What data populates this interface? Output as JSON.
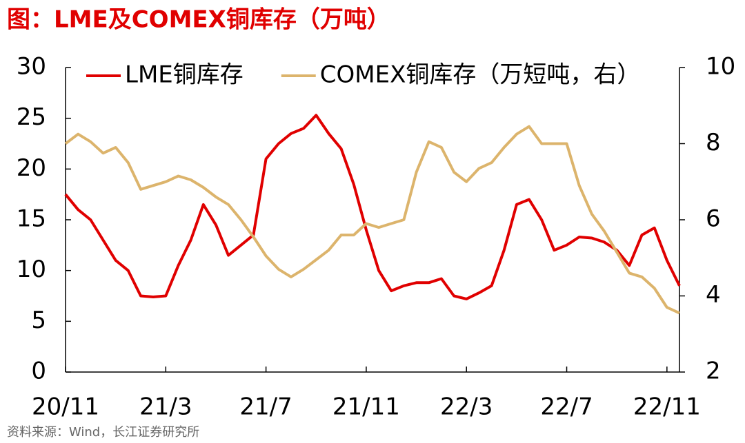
{
  "chart_data": {
    "type": "line",
    "title": "图：LME及COMEX铜库存（万吨）",
    "source": "资料来源：Wind，长江证券研究所",
    "categories": [
      "20/11",
      null,
      null,
      null,
      null,
      null,
      null,
      null,
      "21/3",
      null,
      null,
      null,
      null,
      null,
      null,
      null,
      "21/7",
      null,
      null,
      null,
      null,
      null,
      null,
      null,
      "21/11",
      null,
      null,
      null,
      null,
      null,
      null,
      null,
      "22/3",
      null,
      null,
      null,
      null,
      null,
      null,
      null,
      "22/7",
      null,
      null,
      null,
      null,
      null,
      null,
      null,
      "22/11",
      null
    ],
    "series": [
      {
        "name": "LME铜库存",
        "color": "#e00000",
        "values": [
          17.5,
          16,
          15,
          13,
          11,
          10,
          7.5,
          7.4,
          7.5,
          10.5,
          13,
          16.5,
          14.5,
          11.5,
          12.5,
          13.5,
          21,
          22.5,
          23.5,
          24,
          25.3,
          23.5,
          22,
          18.5,
          14,
          10,
          8,
          8.5,
          8.8,
          8.8,
          9.2,
          7.5,
          7.2,
          7.8,
          8.5,
          12,
          16.5,
          17,
          15,
          12,
          12.5,
          13.3,
          13.2,
          12.8,
          12,
          10.5,
          13.5,
          14.2,
          11,
          8.5
        ]
      },
      {
        "name": "COMEX铜库存（万短吨，右）",
        "color": "#dcb46c",
        "axis": "y2",
        "values": [
          8.0,
          8.25,
          8.05,
          7.75,
          7.9,
          7.5,
          6.8,
          6.9,
          7.0,
          7.15,
          7.05,
          6.85,
          6.6,
          6.4,
          6.0,
          5.55,
          5.05,
          4.7,
          4.5,
          4.7,
          4.95,
          5.2,
          5.6,
          5.6,
          5.9,
          5.8,
          5.9,
          6.0,
          7.25,
          8.05,
          7.9,
          7.25,
          7.0,
          7.35,
          7.5,
          7.9,
          8.25,
          8.45,
          8.0,
          8.0,
          8.0,
          6.9,
          6.15,
          5.7,
          5.15,
          4.6,
          4.5,
          4.2,
          3.7,
          3.55
        ]
      }
    ],
    "ylim": [
      0,
      30
    ],
    "yticks": [
      0,
      5,
      10,
      15,
      20,
      25,
      30
    ],
    "y2lim": [
      2,
      10
    ],
    "y2ticks": [
      2,
      4,
      6,
      8,
      10
    ],
    "legend": "top",
    "grid": false
  }
}
